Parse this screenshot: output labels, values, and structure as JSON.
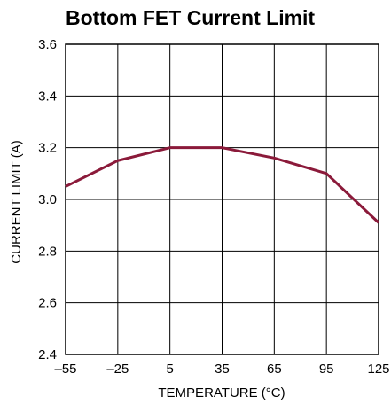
{
  "chart_data": {
    "type": "line",
    "title": "Bottom FET Current Limit",
    "xlabel": "TEMPERATURE (°C)",
    "ylabel": "CURRENT LIMIT (A)",
    "xlim": [
      -55,
      125
    ],
    "ylim": [
      2.4,
      3.6
    ],
    "x_ticks": [
      -55,
      -25,
      5,
      35,
      65,
      95,
      125
    ],
    "x_tick_labels": [
      "–55",
      "–25",
      "5",
      "35",
      "65",
      "95",
      "125"
    ],
    "y_ticks": [
      2.4,
      2.6,
      2.8,
      3.0,
      3.2,
      3.4,
      3.6
    ],
    "y_tick_labels": [
      "2.4",
      "2.6",
      "2.8",
      "3.0",
      "3.2",
      "3.4",
      "3.6"
    ],
    "grid": true,
    "series": [
      {
        "color": "#8b1a3a",
        "x": [
          -55,
          -25,
          5,
          35,
          65,
          95,
          125
        ],
        "y": [
          3.05,
          3.15,
          3.2,
          3.2,
          3.16,
          3.1,
          2.91
        ]
      }
    ]
  },
  "colors": {
    "grid": "#000000",
    "line": "#8b1a3a",
    "text": "#000000"
  }
}
